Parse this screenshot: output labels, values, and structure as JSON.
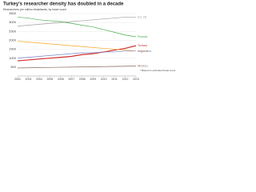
{
  "chart_data": {
    "type": "line",
    "title": "Turkey's researcher density has doubled in a decade",
    "subtitle": "Researchers per million inhabitants, by head count",
    "x": [
      2002,
      2003,
      2004,
      2005,
      2006,
      2007,
      2008,
      2009,
      2010,
      2011,
      2012,
      2013
    ],
    "xlim": [
      2002,
      2013
    ],
    "xticks": [
      2002,
      2003,
      2004,
      2005,
      2006,
      2007,
      2008,
      2009,
      2010,
      2011,
      2012,
      2013
    ],
    "ylim": [
      0,
      3500
    ],
    "yticks": [
      500,
      1000,
      1500,
      2000,
      2500,
      3000,
      3500
    ],
    "grid": true,
    "series": [
      {
        "name": "EU 28",
        "color": "#9e9e9e",
        "values": [
          2800,
          2850,
          2900,
          2950,
          3000,
          3050,
          3100,
          3150,
          3200,
          3250,
          3300,
          3300
        ]
      },
      {
        "name": "Russia",
        "color": "#4caf50",
        "values": [
          3300,
          3250,
          3150,
          3100,
          3050,
          2950,
          2850,
          2750,
          2600,
          2450,
          2300,
          2200
        ]
      },
      {
        "name": "Turkey",
        "color": "#d32f2f",
        "values": [
          850,
          900,
          950,
          1000,
          1050,
          1100,
          1200,
          1250,
          1350,
          1450,
          1550,
          1700
        ]
      },
      {
        "name": "Ukraine",
        "color": "#f5a623",
        "values": [
          1950,
          1900,
          1850,
          1800,
          1750,
          1700,
          1650,
          1600,
          1550,
          1500,
          1450,
          1400
        ]
      },
      {
        "name": "Argentina",
        "color": "#7986cb",
        "values": [
          1000,
          1050,
          1100,
          1150,
          1200,
          1250,
          1300,
          1300,
          1350,
          1350,
          1400,
          1400
        ]
      },
      {
        "name": "Mexico",
        "color": "#8d6e63",
        "values": [
          450,
          460,
          470,
          480,
          490,
          500,
          510,
          520,
          530,
          540,
          550,
          560
        ]
      }
    ],
    "note": "* Based on estimated head count"
  }
}
